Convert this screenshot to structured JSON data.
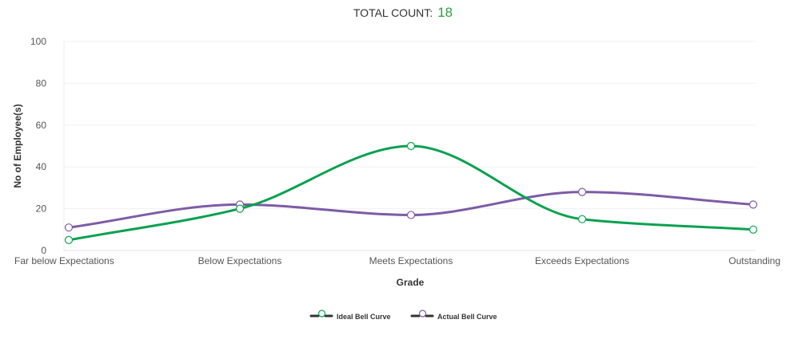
{
  "header": {
    "label": "TOTAL COUNT:",
    "value": "18"
  },
  "chart_data": {
    "type": "line",
    "categories": [
      "Far below Expectations",
      "Below Expectations",
      "Meets Expectations",
      "Exceeds Expectations",
      "Outstanding"
    ],
    "series": [
      {
        "name": "Ideal Bell Curve",
        "values": [
          5,
          20,
          50,
          15,
          10
        ],
        "color": "#0aa14f"
      },
      {
        "name": "Actual Bell Curve",
        "values": [
          11,
          22,
          17,
          28,
          22
        ],
        "color": "#7d5ba6"
      }
    ],
    "title": "",
    "xlabel": "Grade",
    "ylabel": "No of Employee(s)",
    "ylim": [
      0,
      100
    ],
    "yticks": [
      0,
      20,
      40,
      60,
      80,
      100
    ],
    "grid": true,
    "legend_position": "bottom-center",
    "smooth": true
  }
}
